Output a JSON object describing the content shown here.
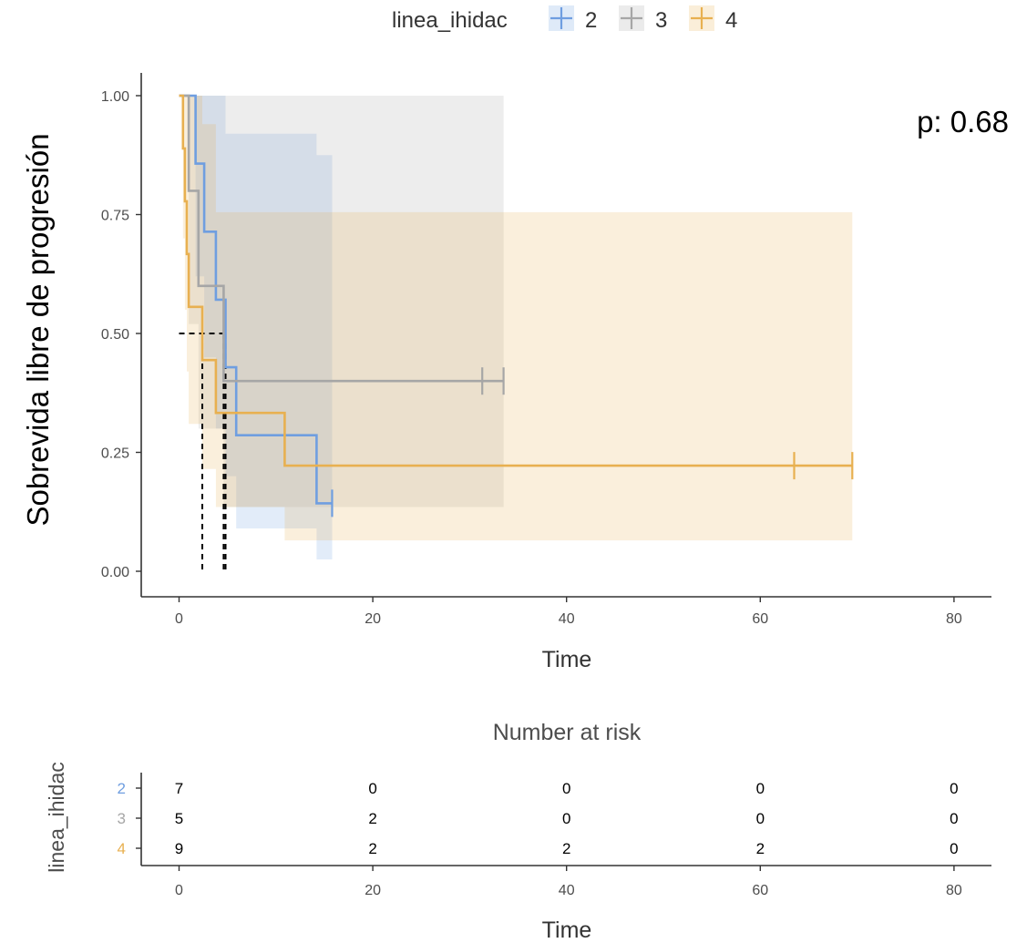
{
  "chart_data": [
    {
      "type": "line",
      "subtype": "kaplan-meier",
      "ylabel": "Sobrevida libre de progresión",
      "xlabel": "Time",
      "xlim": [
        -2,
        83
      ],
      "ylim": [
        0,
        1
      ],
      "x_ticks": [
        0,
        20,
        40,
        60,
        80
      ],
      "y_ticks": [
        0,
        0.25,
        0.5,
        0.75,
        1.0
      ],
      "x_tick_labels": [
        "0",
        "20",
        "40",
        "60",
        "80"
      ],
      "y_tick_labels": [
        "0.00",
        "0.25",
        "0.50",
        "0.75",
        "1.00"
      ],
      "grid": false,
      "legend": {
        "title": "linea_ihidac",
        "placement": "top",
        "entries": [
          {
            "label": "2",
            "color": "#6f9ee0"
          },
          {
            "label": "3",
            "color": "#a6a6a6"
          },
          {
            "label": "4",
            "color": "#e8b050"
          }
        ]
      },
      "annotation": {
        "text": "p: 0.68"
      },
      "median_lines": {
        "y": 0.5,
        "x_values": [
          2.4,
          4.6,
          4.8
        ],
        "style": "dashed"
      },
      "series": [
        {
          "name": "2",
          "color": "#6f9ee0",
          "steps": [
            [
              0,
              1.0
            ],
            [
              1.7,
              0.857
            ],
            [
              2.6,
              0.714
            ],
            [
              3.8,
              0.571
            ],
            [
              4.8,
              0.429
            ],
            [
              5.9,
              0.286
            ],
            [
              14.2,
              0.143
            ],
            [
              15.8,
              0.143
            ]
          ],
          "ci": [
            [
              0,
              1.0,
              1.0
            ],
            [
              1.7,
              0.62,
              1.0
            ],
            [
              2.6,
              0.45,
              1.0
            ],
            [
              3.8,
              0.3,
              1.0
            ],
            [
              4.8,
              0.2,
              0.92
            ],
            [
              5.9,
              0.09,
              0.92
            ],
            [
              14.2,
              0.025,
              0.875
            ],
            [
              15.8,
              0.025,
              0.875
            ]
          ],
          "censor_x": [
            15.8
          ]
        },
        {
          "name": "3",
          "color": "#a6a6a6",
          "steps": [
            [
              0,
              1.0
            ],
            [
              1.0,
              0.8
            ],
            [
              2.0,
              0.6
            ],
            [
              4.6,
              0.4
            ],
            [
              33.5,
              0.4
            ]
          ],
          "ci": [
            [
              0,
              1.0,
              1.0
            ],
            [
              1.0,
              0.52,
              1.0
            ],
            [
              2.0,
              0.3,
              1.0
            ],
            [
              4.6,
              0.135,
              1.0
            ],
            [
              33.5,
              0.135,
              1.0
            ]
          ],
          "censor_x": [
            31.3,
            33.5
          ]
        },
        {
          "name": "4",
          "color": "#e8b050",
          "steps": [
            [
              0,
              1.0
            ],
            [
              0.4,
              0.889
            ],
            [
              0.6,
              0.778
            ],
            [
              0.8,
              0.667
            ],
            [
              1.0,
              0.556
            ],
            [
              2.4,
              0.444
            ],
            [
              3.8,
              0.333
            ],
            [
              10.9,
              0.222
            ],
            [
              69.5,
              0.222
            ]
          ],
          "ci": [
            [
              0,
              1.0,
              1.0
            ],
            [
              0.4,
              0.7,
              1.0
            ],
            [
              0.6,
              0.55,
              1.0
            ],
            [
              0.8,
              0.42,
              1.0
            ],
            [
              1.0,
              0.31,
              1.0
            ],
            [
              2.4,
              0.215,
              0.94
            ],
            [
              3.8,
              0.135,
              0.755
            ],
            [
              10.9,
              0.065,
              0.755
            ],
            [
              69.5,
              0.065,
              0.755
            ]
          ],
          "censor_x": [
            63.5,
            69.5
          ]
        }
      ]
    },
    {
      "type": "table",
      "title": "Number at risk",
      "ylabel": "linea_ihidac",
      "xlabel": "Time",
      "x_ticks": [
        0,
        20,
        40,
        60,
        80
      ],
      "x_tick_labels": [
        "0",
        "20",
        "40",
        "60",
        "80"
      ],
      "rows": [
        {
          "label": "2",
          "color": "#6f9ee0",
          "values": [
            "7",
            "0",
            "0",
            "0",
            "0"
          ]
        },
        {
          "label": "3",
          "color": "#a6a6a6",
          "values": [
            "5",
            "2",
            "0",
            "0",
            "0"
          ]
        },
        {
          "label": "4",
          "color": "#e8b050",
          "values": [
            "9",
            "2",
            "2",
            "2",
            "0"
          ]
        }
      ]
    }
  ]
}
